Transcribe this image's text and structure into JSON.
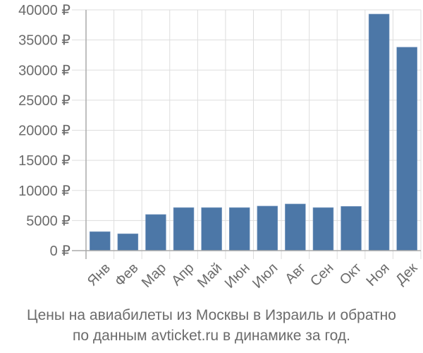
{
  "chart_data": {
    "type": "bar",
    "title": "Цены на авиабилеты из Москвы в Израиль и обратно по данным avticket.ru в динамике за год.",
    "xlabel": "",
    "ylabel": "",
    "categories": [
      "Янв",
      "Фев",
      "Мар",
      "Апр",
      "Май",
      "Июн",
      "Июл",
      "Авг",
      "Сен",
      "Окт",
      "Ноя",
      "Дек"
    ],
    "values": [
      3150,
      2800,
      6000,
      7150,
      7150,
      7150,
      7400,
      7750,
      7150,
      7350,
      39300,
      33800
    ],
    "ylim": [
      0,
      40000
    ],
    "yticks": [
      0,
      5000,
      10000,
      15000,
      20000,
      25000,
      30000,
      35000,
      40000
    ],
    "ytick_labels": [
      "0 ₽",
      "5000 ₽",
      "10000 ₽",
      "15000 ₽",
      "20000 ₽",
      "25000 ₽",
      "30000 ₽",
      "35000 ₽",
      "40000 ₽"
    ],
    "grid": true,
    "legend": null,
    "bar_color": "#4c77a7",
    "grid_color": "#dddddd",
    "axis_color": "#aaaaaa",
    "text_color": "#6b6b6b"
  },
  "caption": {
    "line1": "Цены на авиабилеты из Москвы в Израиль и обратно",
    "line2": "по данным avticket.ru в динамике за год."
  }
}
